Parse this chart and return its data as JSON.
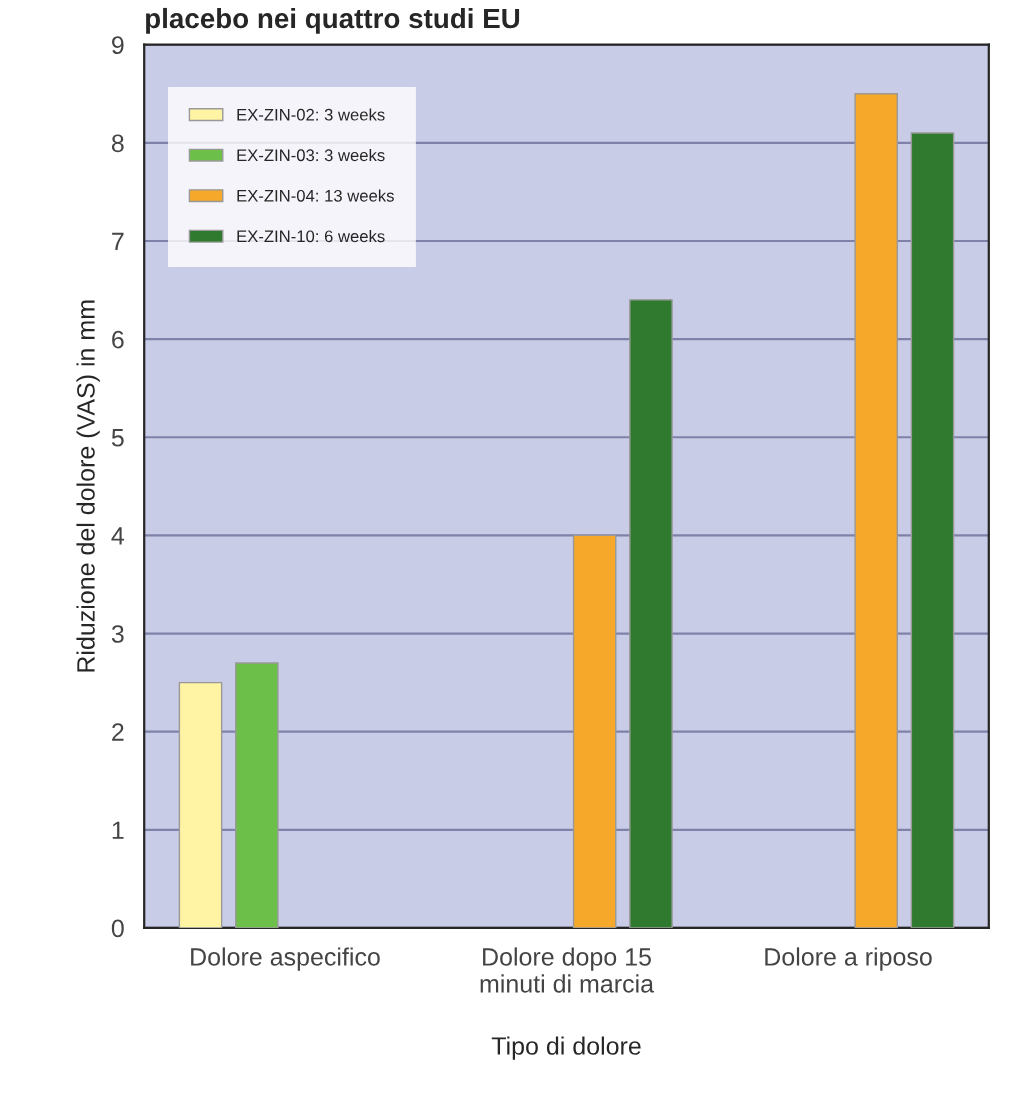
{
  "chart_data": {
    "type": "bar",
    "title": "placebo nei quattro studi EU",
    "xlabel": "Tipo di dolore",
    "ylabel": "Riduzione del dolore (VAS) in mm",
    "categories": [
      "Dolore aspecifico",
      "Dolore dopo 15\nminuti di marcia",
      "Dolore a riposo"
    ],
    "series": [
      {
        "name": "EX-ZIN-02: 3 weeks",
        "color": "#fff4a3",
        "values": [
          2.5,
          null,
          null
        ]
      },
      {
        "name": "EX-ZIN-03: 3 weeks",
        "color": "#6cc04a",
        "values": [
          2.7,
          null,
          null
        ]
      },
      {
        "name": "EX-ZIN-04: 13 weeks",
        "color": "#f5a82a",
        "values": [
          null,
          4.0,
          8.5
        ]
      },
      {
        "name": "EX-ZIN-10: 6 weeks",
        "color": "#2f7a2f",
        "values": [
          null,
          6.4,
          8.1
        ]
      }
    ],
    "ylim": [
      0,
      9
    ],
    "yticks": [
      0,
      1,
      2,
      3,
      4,
      5,
      6,
      7,
      8,
      9
    ],
    "grid": "y",
    "legend": "top left"
  }
}
